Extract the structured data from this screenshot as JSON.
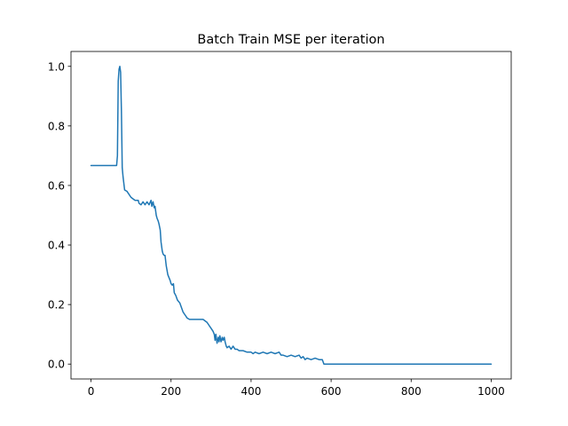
{
  "chart_data": {
    "type": "line",
    "title": "Batch Train MSE per iteration",
    "xlabel": "",
    "ylabel": "",
    "xlim": [
      -50,
      1050
    ],
    "ylim": [
      -0.05,
      1.05
    ],
    "xticks": [
      0,
      200,
      400,
      600,
      800,
      1000
    ],
    "xtick_labels": [
      "0",
      "200",
      "400",
      "600",
      "800",
      "1000"
    ],
    "yticks": [
      0.0,
      0.2,
      0.4,
      0.6,
      0.8,
      1.0
    ],
    "ytick_labels": [
      "0.0",
      "0.2",
      "0.4",
      "0.6",
      "0.8",
      "1.0"
    ],
    "grid": false,
    "legend": "none",
    "series": [
      {
        "color": "#1f77b4",
        "x": [
          0,
          64,
          66,
          68,
          70,
          72,
          74,
          76,
          78,
          80,
          84,
          90,
          100,
          110,
          118,
          120,
          125,
          130,
          135,
          140,
          145,
          150,
          152,
          155,
          158,
          160,
          163,
          165,
          168,
          170,
          173,
          175,
          178,
          180,
          183,
          185,
          188,
          192,
          195,
          198,
          200,
          203,
          206,
          208,
          212,
          216,
          222,
          226,
          230,
          235,
          240,
          246,
          250,
          260,
          270,
          280,
          290,
          295,
          300,
          305,
          308,
          310,
          312,
          315,
          318,
          320,
          322,
          325,
          328,
          330,
          333,
          335,
          338,
          340,
          345,
          350,
          355,
          360,
          365,
          370,
          380,
          390,
          400,
          405,
          410,
          420,
          430,
          440,
          450,
          460,
          470,
          475,
          480,
          490,
          500,
          510,
          520,
          525,
          530,
          535,
          540,
          550,
          560,
          570,
          578,
          582,
          600,
          700,
          800,
          900,
          1000
        ],
        "y": [
          0.667,
          0.667,
          0.7,
          0.95,
          0.99,
          1.0,
          0.98,
          0.85,
          0.66,
          0.63,
          0.585,
          0.58,
          0.56,
          0.55,
          0.55,
          0.54,
          0.535,
          0.545,
          0.535,
          0.545,
          0.535,
          0.55,
          0.53,
          0.545,
          0.525,
          0.53,
          0.5,
          0.49,
          0.48,
          0.47,
          0.45,
          0.41,
          0.38,
          0.37,
          0.365,
          0.365,
          0.33,
          0.3,
          0.29,
          0.28,
          0.27,
          0.265,
          0.27,
          0.24,
          0.23,
          0.215,
          0.205,
          0.19,
          0.175,
          0.165,
          0.155,
          0.15,
          0.15,
          0.15,
          0.15,
          0.15,
          0.14,
          0.13,
          0.12,
          0.11,
          0.1,
          0.08,
          0.1,
          0.07,
          0.09,
          0.075,
          0.095,
          0.075,
          0.09,
          0.08,
          0.09,
          0.075,
          0.06,
          0.055,
          0.06,
          0.05,
          0.06,
          0.05,
          0.05,
          0.045,
          0.045,
          0.04,
          0.04,
          0.035,
          0.04,
          0.035,
          0.04,
          0.035,
          0.04,
          0.035,
          0.04,
          0.03,
          0.03,
          0.025,
          0.03,
          0.025,
          0.03,
          0.02,
          0.025,
          0.015,
          0.02,
          0.015,
          0.02,
          0.015,
          0.015,
          0.0,
          0.0,
          0.0,
          0.0,
          0.0,
          0.0
        ]
      }
    ]
  }
}
